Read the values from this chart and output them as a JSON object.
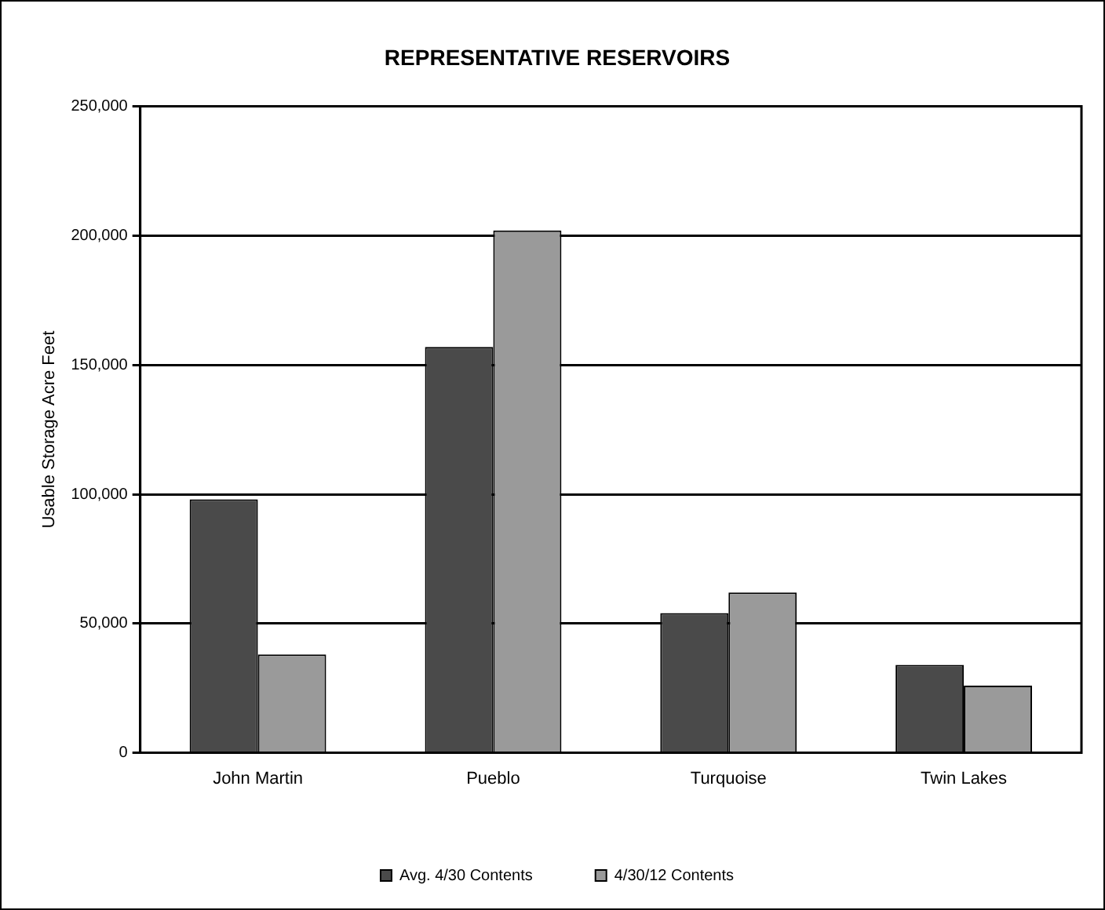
{
  "chart_data": {
    "type": "bar",
    "title": "REPRESENTATIVE RESERVOIRS",
    "ylabel": "Usable Storage Acre Feet",
    "categories": [
      "John Martin",
      "Pueblo",
      "Turquoise",
      "Twin Lakes"
    ],
    "series": [
      {
        "name": "Avg. 4/30 Contents",
        "color": "#4a4a4a",
        "values": [
          98000,
          157000,
          54000,
          34000
        ]
      },
      {
        "name": "4/30/12 Contents",
        "color": "#9a9a9a",
        "values": [
          38000,
          202000,
          62000,
          26000
        ]
      }
    ],
    "ylim": [
      0,
      250000
    ],
    "yticks": [
      {
        "value": 0,
        "label": "0"
      },
      {
        "value": 50000,
        "label": "50,000"
      },
      {
        "value": 100000,
        "label": "100,000"
      },
      {
        "value": 150000,
        "label": "150,000"
      },
      {
        "value": 200000,
        "label": "200,000"
      },
      {
        "value": 250000,
        "label": "250,000"
      }
    ],
    "grid": "y",
    "legend": "bottom"
  }
}
